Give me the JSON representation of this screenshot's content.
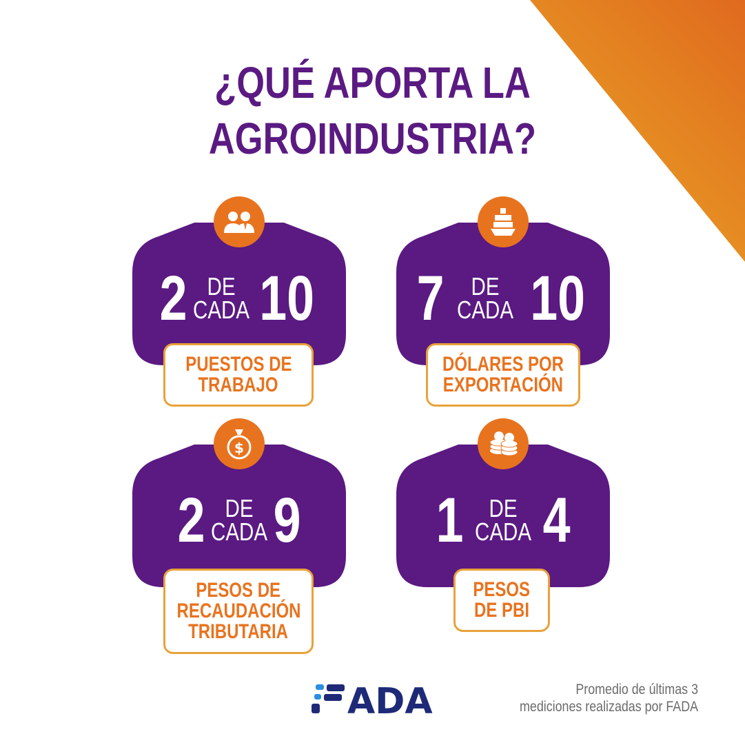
{
  "title": {
    "line1": "¿QUÉ APORTA LA",
    "line2": "AGROINDUSTRIA?"
  },
  "colors": {
    "purple": "#5a1a82",
    "orange": "#e8731f",
    "gold_border": "#e8a23a"
  },
  "cards": [
    {
      "icon": "people-icon",
      "number": "2",
      "de": "DE",
      "cada": "CADA",
      "total": "10",
      "label_lines": [
        "PUESTOS DE",
        "TRABAJO"
      ]
    },
    {
      "icon": "cargo-ship-icon",
      "number": "7",
      "de": "DE",
      "cada": "CADA",
      "total": "10",
      "label_lines": [
        "DÓLARES POR",
        "EXPORTACIÓN"
      ]
    },
    {
      "icon": "money-bag-icon",
      "number": "2",
      "de": "DE",
      "cada": "CADA",
      "total": "9",
      "label_lines": [
        "PESOS DE",
        "RECAUDACIÓN",
        "TRIBUTARIA"
      ]
    },
    {
      "icon": "coins-icon",
      "number": "1",
      "de": "DE",
      "cada": "CADA",
      "total": "4",
      "label_lines": [
        "PESOS",
        "DE PBI"
      ]
    }
  ],
  "logo": {
    "text": "FADA"
  },
  "footnote": {
    "line1": "Promedio de últimas 3",
    "line2": "mediciones realizadas por FADA"
  }
}
